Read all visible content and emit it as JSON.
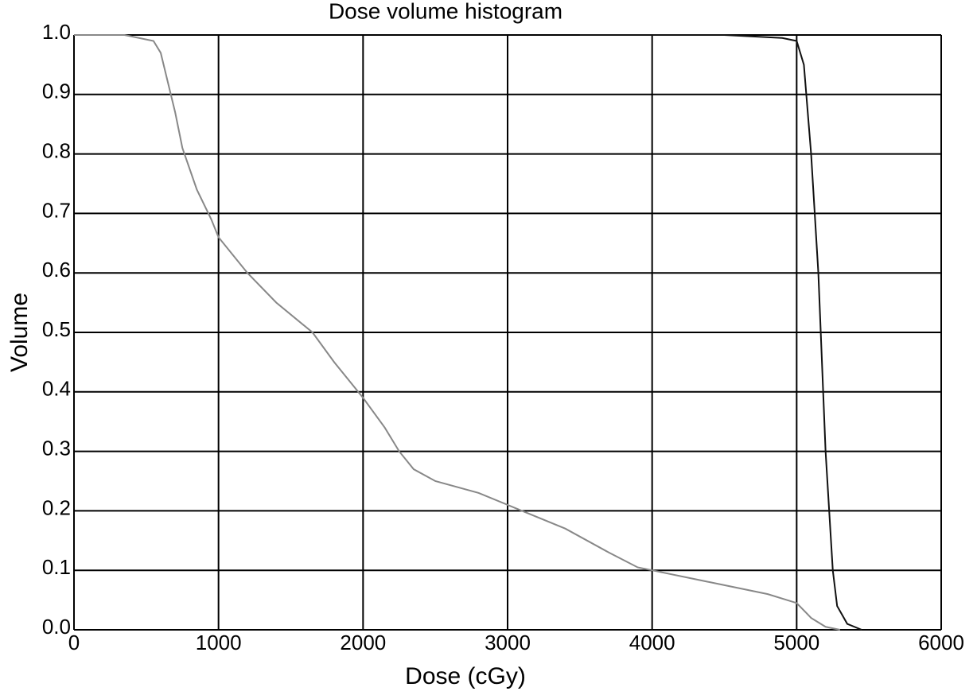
{
  "chart_data": {
    "type": "line",
    "title": "Dose volume histogram",
    "x_label": "Dose (cGy)",
    "y_label": "Volume",
    "xlim": [
      0,
      6000
    ],
    "xticks": [
      0,
      1000,
      2000,
      3000,
      4000,
      5000,
      6000
    ],
    "ylim": [
      0,
      1
    ],
    "yticks": [
      {
        "value": 0,
        "label": "0.0"
      },
      0.1,
      0.2,
      0.3,
      0.4,
      0.5,
      0.6,
      0.7,
      0.8,
      0.9,
      {
        "value": 1,
        "label": "1.0"
      }
    ],
    "grid": true,
    "series": [
      {
        "color": "#888888",
        "x": [
          0,
          350,
          550,
          600,
          650,
          700,
          750,
          850,
          950,
          1000,
          1200,
          1400,
          1650,
          1800,
          2000,
          2150,
          2250,
          2350,
          2500,
          2800,
          3100,
          3400,
          3700,
          3900,
          4000,
          4400,
          4800,
          5000,
          5100,
          5200,
          5300
        ],
        "values": [
          1.0,
          1.0,
          0.99,
          0.97,
          0.92,
          0.87,
          0.81,
          0.74,
          0.69,
          0.66,
          0.6,
          0.55,
          0.5,
          0.45,
          0.39,
          0.34,
          0.3,
          0.27,
          0.25,
          0.23,
          0.2,
          0.17,
          0.13,
          0.105,
          0.1,
          0.08,
          0.06,
          0.045,
          0.02,
          0.005,
          0
        ]
      },
      {
        "color": "#111111",
        "x": [
          3500,
          4500,
          4900,
          5000,
          5050,
          5100,
          5150,
          5200,
          5250,
          5280,
          5350,
          5450
        ],
        "values": [
          1.0,
          1.0,
          0.995,
          0.99,
          0.95,
          0.8,
          0.6,
          0.3,
          0.1,
          0.04,
          0.01,
          0
        ]
      }
    ]
  }
}
